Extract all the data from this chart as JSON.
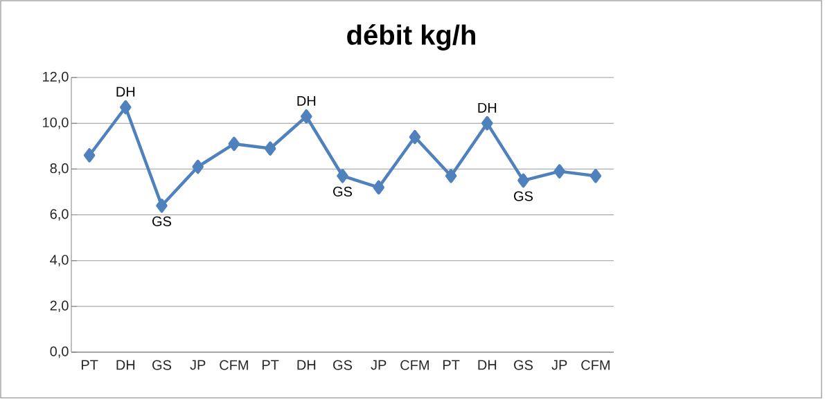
{
  "chart_data": {
    "type": "line",
    "title": "débit kg/h",
    "categories": [
      "PT",
      "DH",
      "GS",
      "JP",
      "CFM",
      "PT",
      "DH",
      "GS",
      "JP",
      "CFM",
      "PT",
      "DH",
      "GS",
      "JP",
      "CFM"
    ],
    "series": [
      {
        "color": "#4f81bd",
        "values": [
          8.6,
          10.7,
          6.4,
          8.1,
          9.1,
          8.9,
          10.3,
          7.7,
          7.2,
          9.4,
          7.7,
          10.0,
          7.5,
          7.9,
          7.7
        ],
        "value_labels": [
          null,
          "DH",
          "GS",
          null,
          null,
          null,
          "DH",
          "GS",
          null,
          null,
          null,
          "DH",
          "GS",
          null,
          null
        ]
      }
    ],
    "ylim": [
      0,
      12
    ],
    "yticks": [
      {
        "value": 0,
        "label": "0,0"
      },
      {
        "value": 2,
        "label": "2,0"
      },
      {
        "value": 4,
        "label": "4,0"
      },
      {
        "value": 6,
        "label": "6,0"
      },
      {
        "value": 8,
        "label": "8,0"
      },
      {
        "value": 10,
        "label": "10,0"
      },
      {
        "value": 12,
        "label": "12,0"
      }
    ],
    "grid": "y",
    "marker": "diamond",
    "line_style": "solid"
  }
}
